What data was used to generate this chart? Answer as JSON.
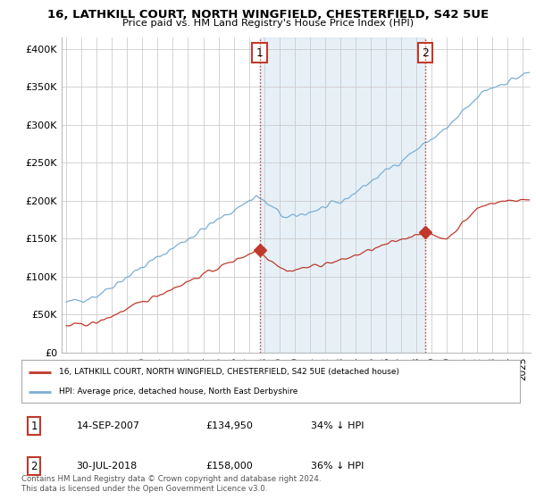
{
  "title": "16, LATHKILL COURT, NORTH WINGFIELD, CHESTERFIELD, S42 5UE",
  "subtitle": "Price paid vs. HM Land Registry's House Price Index (HPI)",
  "ylabel_ticks": [
    "£0",
    "£50K",
    "£100K",
    "£150K",
    "£200K",
    "£250K",
    "£300K",
    "£350K",
    "£400K"
  ],
  "ytick_values": [
    0,
    50000,
    100000,
    150000,
    200000,
    250000,
    300000,
    350000,
    400000
  ],
  "ylim": [
    0,
    415000
  ],
  "hpi_color": "#7aafd4",
  "price_color": "#c0392b",
  "marker1_date": 2007.71,
  "marker1_price": 134950,
  "marker2_date": 2018.58,
  "marker2_price": 158000,
  "shade_color": "#ddeeff",
  "legend_property": "16, LATHKILL COURT, NORTH WINGFIELD, CHESTERFIELD, S42 5UE (detached house)",
  "legend_hpi": "HPI: Average price, detached house, North East Derbyshire",
  "table_row1": [
    "1",
    "14-SEP-2007",
    "£134,950",
    "34% ↓ HPI"
  ],
  "table_row2": [
    "2",
    "30-JUL-2018",
    "£158,000",
    "36% ↓ HPI"
  ],
  "footer": "Contains HM Land Registry data © Crown copyright and database right 2024.\nThis data is licensed under the Open Government Licence v3.0.",
  "background_color": "#ffffff",
  "grid_color": "#cccccc"
}
